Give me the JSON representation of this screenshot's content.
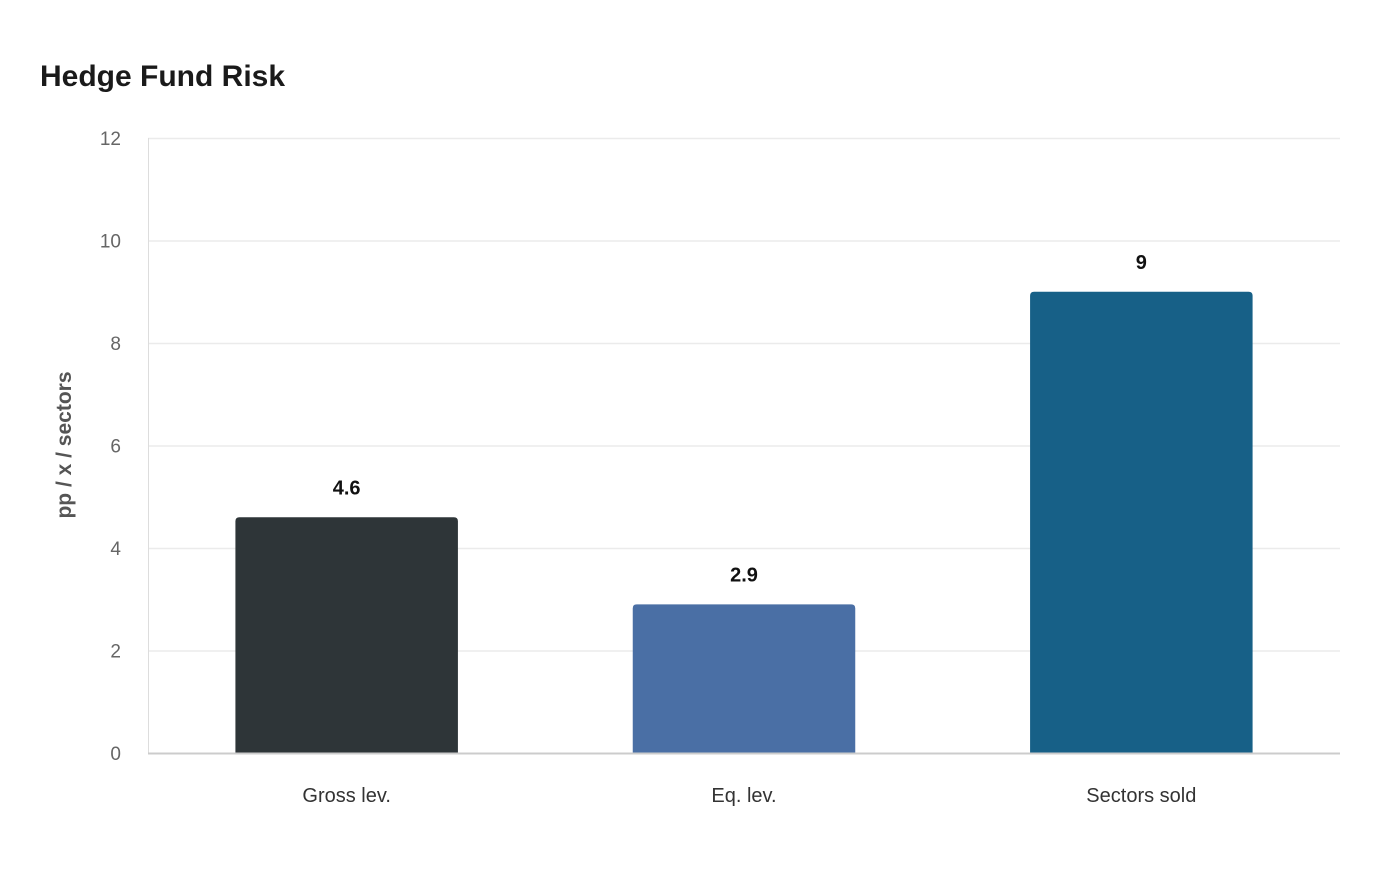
{
  "chart_data": {
    "type": "bar",
    "title": "Hedge Fund Risk",
    "xlabel": "",
    "ylabel": "pp / x / sectors",
    "categories": [
      "Gross lev.",
      "Eq. lev.",
      "Sectors sold"
    ],
    "values": [
      4.6,
      2.9,
      9
    ],
    "data_labels": [
      "4.6",
      "2.9",
      "9"
    ],
    "colors": [
      "#2e3538",
      "#4a6fa5",
      "#176087"
    ],
    "ylim": [
      0,
      12
    ],
    "yticks": [
      0,
      2,
      4,
      6,
      8,
      10,
      12
    ],
    "grid": true,
    "legend": "none"
  }
}
